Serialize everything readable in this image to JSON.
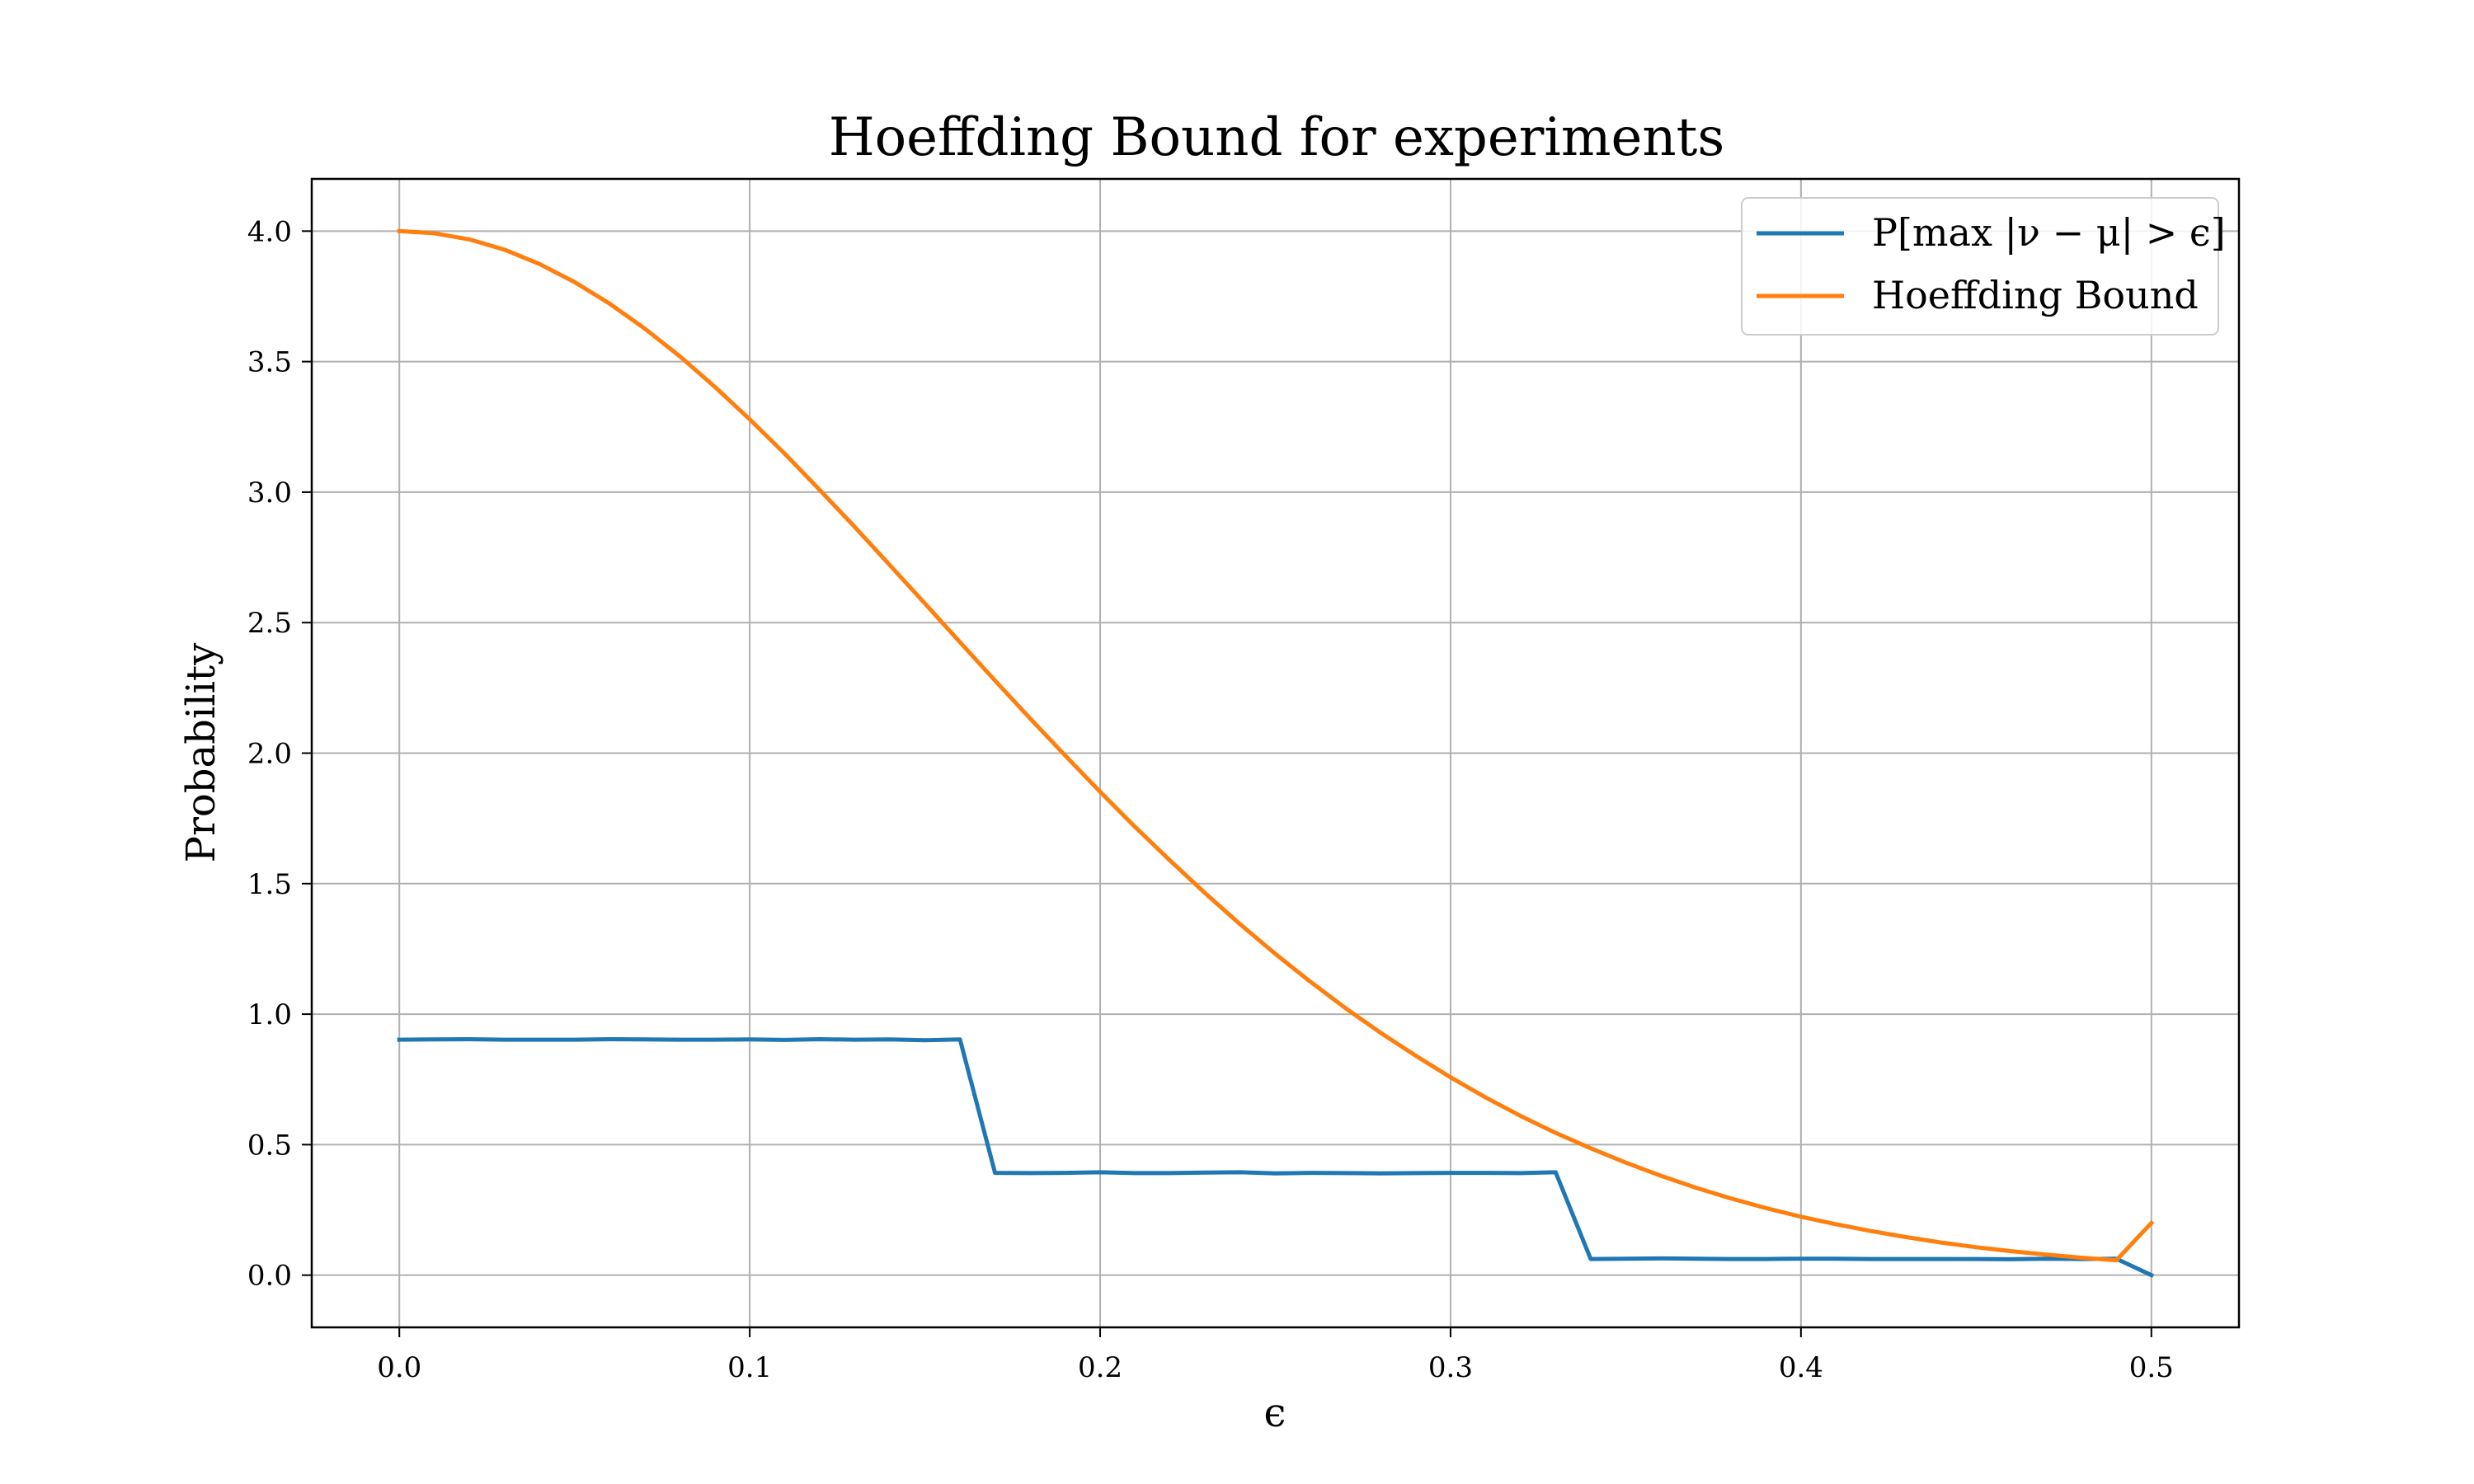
{
  "chart_data": {
    "type": "line",
    "title": "Hoeffding Bound for experiments",
    "xlabel": "ϵ",
    "ylabel": "Probability",
    "xlim": [
      -0.025,
      0.525
    ],
    "ylim": [
      -0.2,
      4.2
    ],
    "xticks": [
      0.0,
      0.1,
      0.2,
      0.3,
      0.4,
      0.5
    ],
    "yticks": [
      0.0,
      0.5,
      1.0,
      1.5,
      2.0,
      2.5,
      3.0,
      3.5,
      4.0
    ],
    "xtick_labels": [
      "0.0",
      "0.1",
      "0.2",
      "0.3",
      "0.4",
      "0.5"
    ],
    "ytick_labels": [
      "0.0",
      "0.5",
      "1.0",
      "1.5",
      "2.0",
      "2.5",
      "3.0",
      "3.5",
      "4.0"
    ],
    "grid": true,
    "legend_position": "top-right",
    "x": [
      0.0,
      0.01,
      0.02,
      0.03,
      0.04,
      0.05,
      0.06,
      0.07,
      0.08,
      0.09,
      0.1,
      0.11,
      0.12,
      0.13,
      0.14,
      0.15,
      0.16,
      0.17,
      0.18,
      0.19,
      0.2,
      0.21,
      0.22,
      0.23,
      0.24,
      0.25,
      0.26,
      0.27,
      0.28,
      0.29,
      0.3,
      0.31,
      0.32,
      0.33,
      0.34,
      0.35,
      0.36,
      0.37,
      0.38,
      0.39,
      0.4,
      0.41,
      0.42,
      0.43,
      0.44,
      0.45,
      0.46,
      0.47,
      0.48,
      0.49,
      0.5
    ],
    "series": [
      {
        "name": "P[max |ν − μ| > ϵ]",
        "color": "#1f77b4",
        "values": [
          0.902,
          0.903,
          0.904,
          0.902,
          0.902,
          0.902,
          0.904,
          0.903,
          0.902,
          0.902,
          0.903,
          0.901,
          0.904,
          0.902,
          0.903,
          0.9,
          0.903,
          0.392,
          0.391,
          0.392,
          0.394,
          0.391,
          0.391,
          0.393,
          0.394,
          0.39,
          0.392,
          0.391,
          0.39,
          0.391,
          0.392,
          0.392,
          0.391,
          0.394,
          0.062,
          0.063,
          0.064,
          0.063,
          0.062,
          0.062,
          0.063,
          0.063,
          0.062,
          0.062,
          0.062,
          0.062,
          0.061,
          0.063,
          0.062,
          0.063,
          0.0
        ]
      },
      {
        "name": "Hoeffding Bound",
        "color": "#ff7f0e",
        "values": [
          4.0,
          3.992,
          3.968,
          3.929,
          3.874,
          3.805,
          3.722,
          3.627,
          3.521,
          3.404,
          3.279,
          3.147,
          3.008,
          2.866,
          2.72,
          2.573,
          2.425,
          2.278,
          2.133,
          1.991,
          1.852,
          1.717,
          1.588,
          1.463,
          1.344,
          1.231,
          1.124,
          1.023,
          0.929,
          0.841,
          0.758,
          0.681,
          0.61,
          0.545,
          0.486,
          0.431,
          0.381,
          0.335,
          0.294,
          0.257,
          0.224,
          0.195,
          0.169,
          0.146,
          0.125,
          0.107,
          0.092,
          0.079,
          0.067,
          0.057,
          0.2
        ]
      }
    ]
  }
}
